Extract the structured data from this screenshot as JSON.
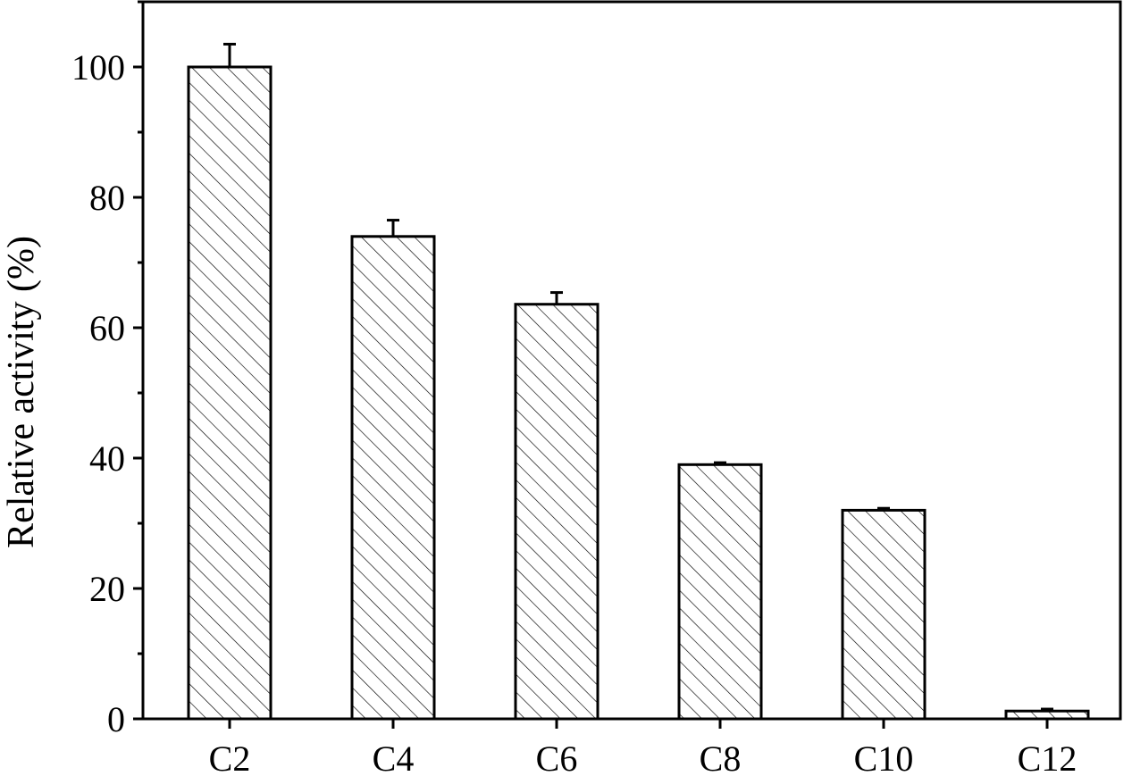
{
  "chart_data": {
    "type": "bar",
    "categories": [
      "C2",
      "C4",
      "C6",
      "C8",
      "C10",
      "C12"
    ],
    "values": [
      100,
      74,
      63.6,
      39,
      32,
      1.2
    ],
    "errors": [
      3.5,
      2.5,
      1.8,
      0.3,
      0.3,
      0.3
    ],
    "xlabel": "",
    "ylabel": "Relative activity (%)",
    "ylim": [
      0,
      110
    ],
    "yticks": [
      "0",
      "20",
      "40",
      "60",
      "80",
      "100"
    ],
    "grid": false,
    "bar_fill": "hatched",
    "colors": {
      "bar_stroke": "#000000",
      "hatch": "#000000",
      "background": "#ffffff"
    }
  }
}
